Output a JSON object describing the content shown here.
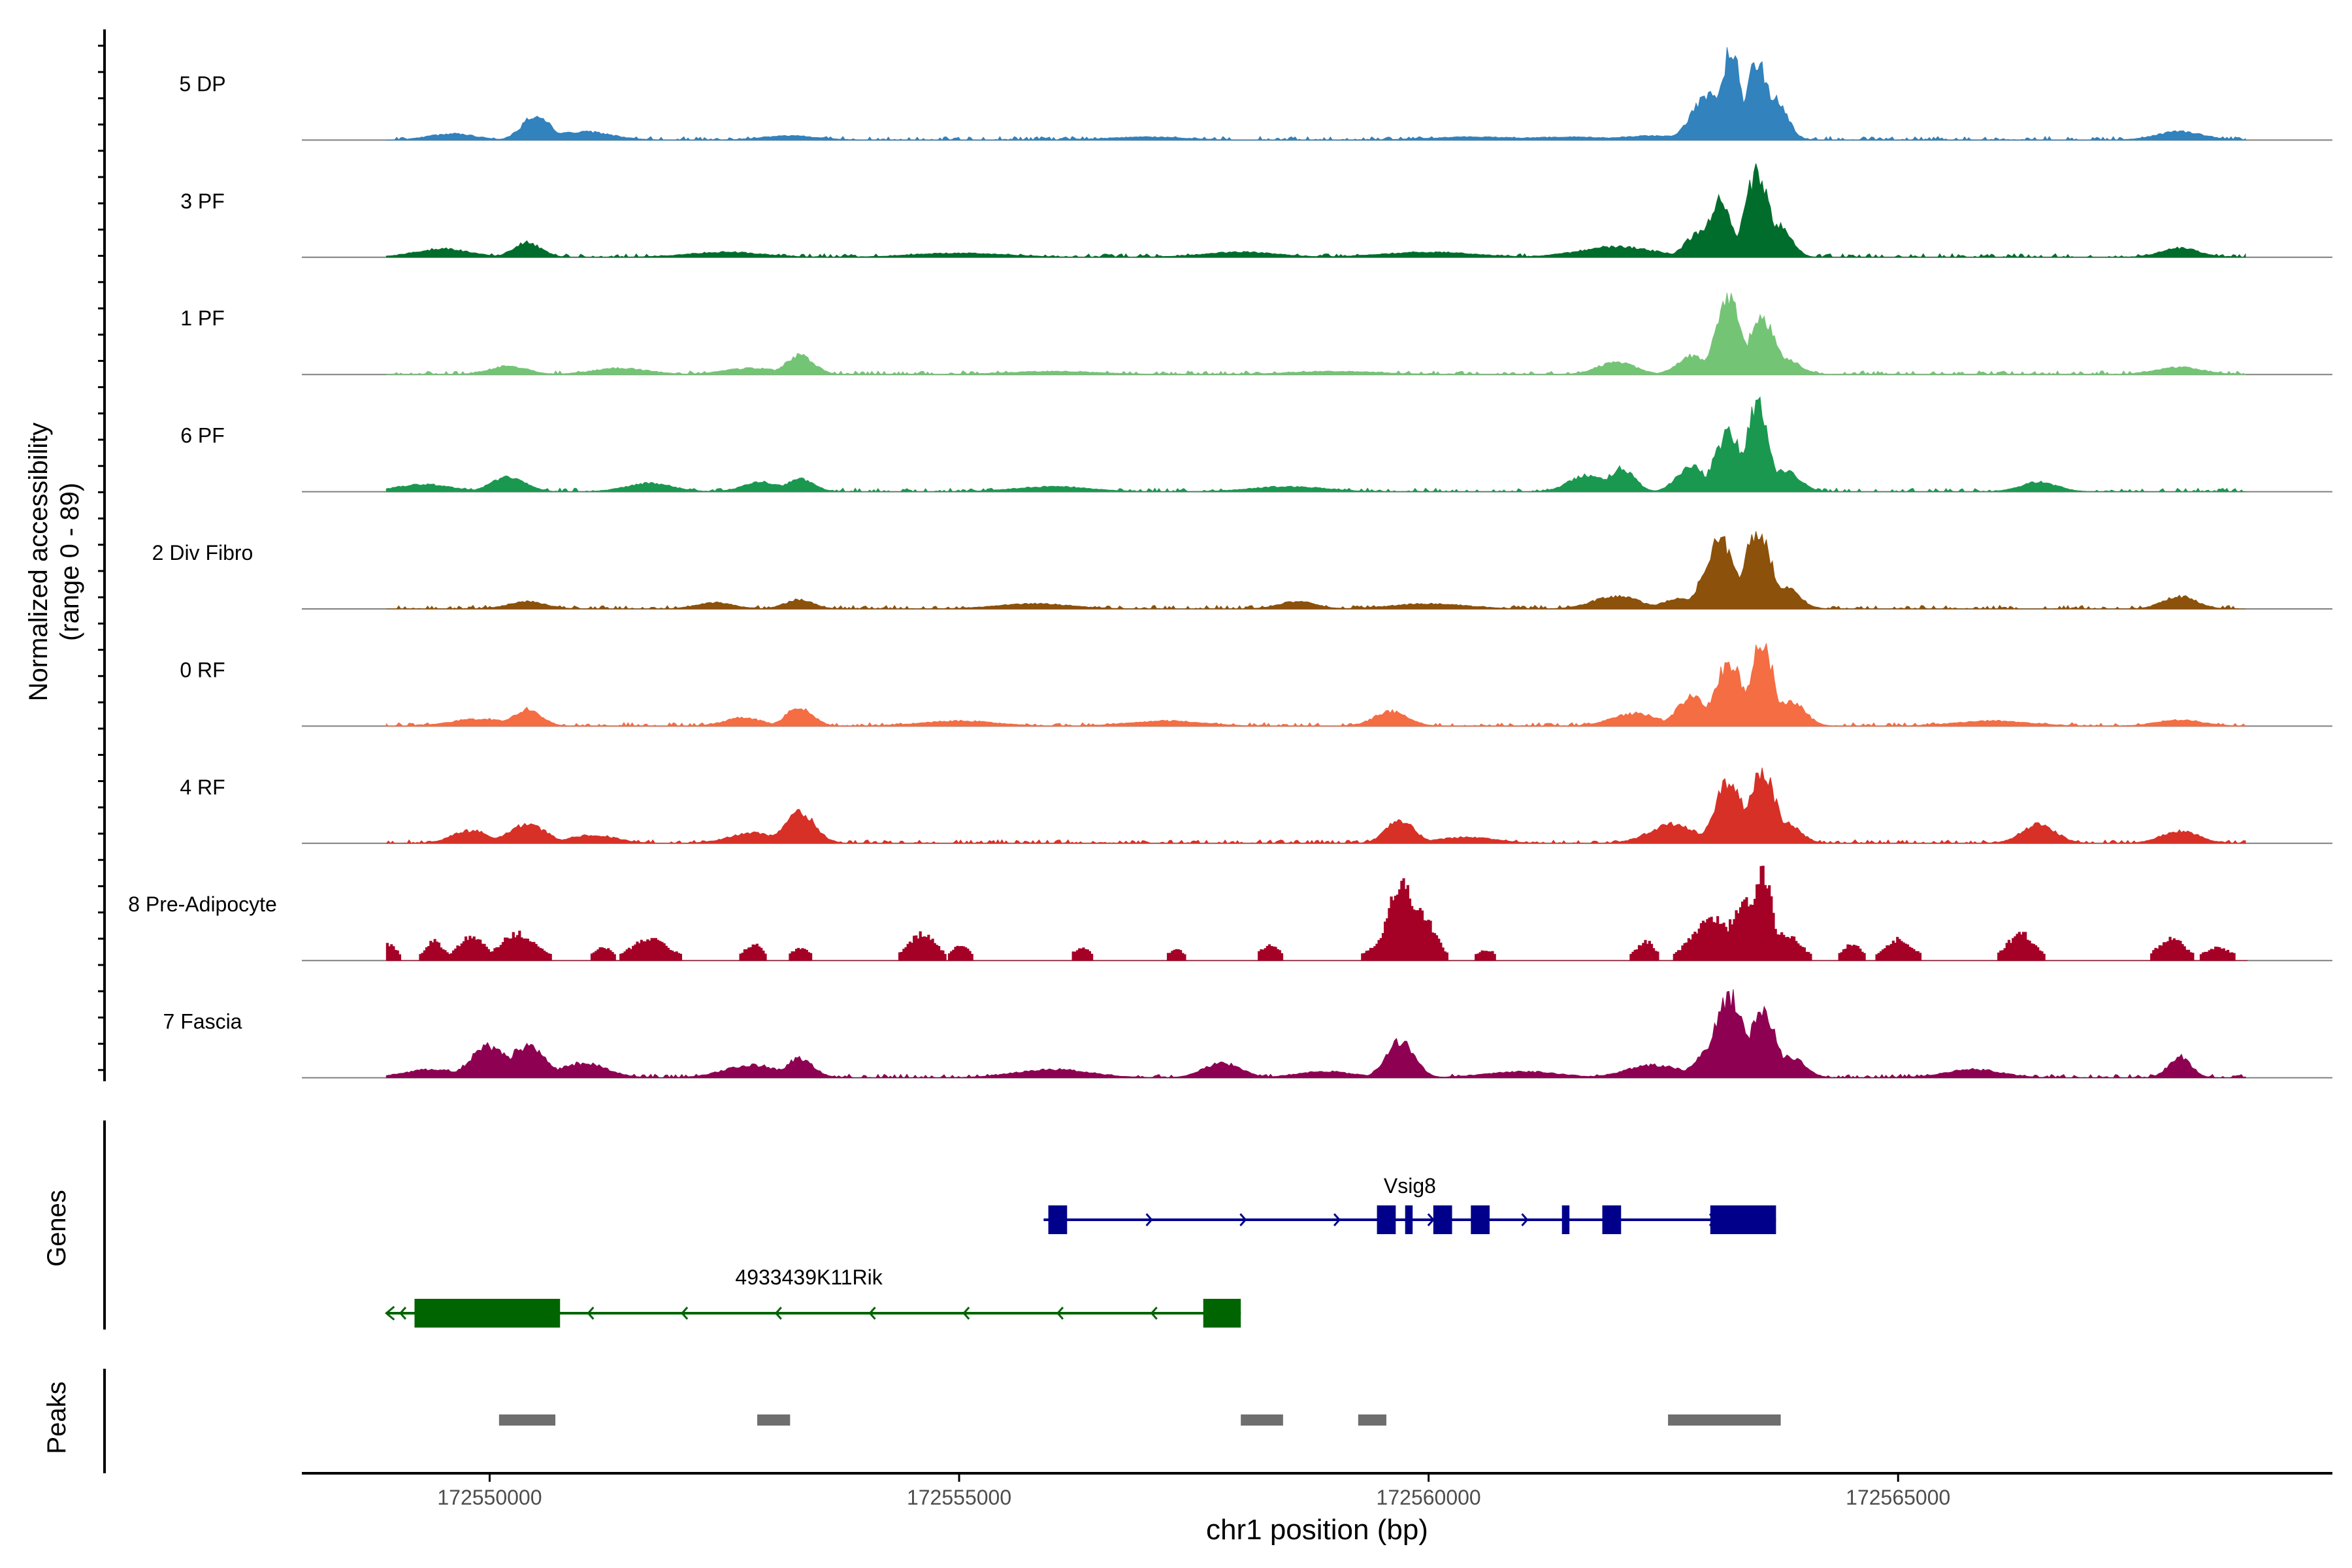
{
  "chart_data": {
    "type": "area",
    "title": "",
    "xlabel": "chr1 position (bp)",
    "ylabel": "Normalized accessibility",
    "ylabel_range": "(range 0 - 89)",
    "xlim": [
      172548000,
      172569500
    ],
    "ylim": [
      0,
      89
    ],
    "x_ticks": [
      172550000,
      172555000,
      172560000,
      172565000
    ],
    "x_tick_labels": [
      "172550000",
      "172555000",
      "172560000",
      "172565000"
    ],
    "track_labels": {
      "genes": "Genes",
      "peaks": "Peaks"
    },
    "series": [
      {
        "name": "5 DP",
        "color": "#3182BD",
        "peaks": [
          [
            172550500,
            24,
            150
          ],
          [
            172551000,
            8,
            300
          ],
          [
            172549600,
            6,
            250
          ],
          [
            172553200,
            4,
            300
          ],
          [
            172557000,
            3,
            400
          ],
          [
            172560500,
            3,
            500
          ],
          [
            172561500,
            3,
            500
          ],
          [
            172562400,
            4,
            400
          ],
          [
            172563000,
            45,
            180
          ],
          [
            172563220,
            85,
            110
          ],
          [
            172563500,
            75,
            120
          ],
          [
            172563700,
            40,
            120
          ],
          [
            172568000,
            8,
            250
          ]
        ]
      },
      {
        "name": "3 PF",
        "color": "#006D2C",
        "peaks": [
          [
            172550400,
            14,
            150
          ],
          [
            172549500,
            8,
            300
          ],
          [
            172552500,
            5,
            400
          ],
          [
            172555000,
            4,
            500
          ],
          [
            172558000,
            5,
            400
          ],
          [
            172560000,
            5,
            500
          ],
          [
            172562000,
            10,
            400
          ],
          [
            172562900,
            25,
            150
          ],
          [
            172563100,
            55,
            120
          ],
          [
            172563500,
            80,
            130
          ],
          [
            172563750,
            30,
            120
          ],
          [
            172568000,
            9,
            200
          ]
        ]
      },
      {
        "name": "1 PF",
        "color": "#74C476",
        "peaks": [
          [
            172550200,
            8,
            200
          ],
          [
            172551400,
            6,
            300
          ],
          [
            172553300,
            18,
            150
          ],
          [
            172552800,
            6,
            300
          ],
          [
            172556000,
            3,
            500
          ],
          [
            172559000,
            3,
            500
          ],
          [
            172562000,
            12,
            200
          ],
          [
            172562800,
            18,
            150
          ],
          [
            172563200,
            70,
            140
          ],
          [
            172563550,
            55,
            140
          ],
          [
            172563800,
            15,
            150
          ],
          [
            172568000,
            7,
            250
          ]
        ]
      },
      {
        "name": "6 PF",
        "color": "#1A9850",
        "peaks": [
          [
            172550200,
            14,
            180
          ],
          [
            172549300,
            7,
            300
          ],
          [
            172551700,
            8,
            250
          ],
          [
            172553300,
            12,
            150
          ],
          [
            172552900,
            9,
            200
          ],
          [
            172556000,
            5,
            400
          ],
          [
            172558500,
            5,
            400
          ],
          [
            172561700,
            16,
            200
          ],
          [
            172562050,
            22,
            140
          ],
          [
            172562800,
            25,
            150
          ],
          [
            172563200,
            55,
            150
          ],
          [
            172563500,
            85,
            120
          ],
          [
            172563800,
            20,
            150
          ],
          [
            172566500,
            9,
            200
          ]
        ]
      },
      {
        "name": "2 Div Fibro",
        "color": "#8C510A",
        "peaks": [
          [
            172550400,
            7,
            200
          ],
          [
            172553300,
            9,
            150
          ],
          [
            172552400,
            6,
            200
          ],
          [
            172555800,
            5,
            400
          ],
          [
            172558600,
            7,
            200
          ],
          [
            172560000,
            5,
            400
          ],
          [
            172562000,
            12,
            250
          ],
          [
            172562700,
            10,
            200
          ],
          [
            172563100,
            65,
            160
          ],
          [
            172563500,
            72,
            150
          ],
          [
            172563800,
            20,
            150
          ],
          [
            172568000,
            12,
            180
          ]
        ]
      },
      {
        "name": "0 RF",
        "color": "#F46D43",
        "peaks": [
          [
            172550400,
            16,
            150
          ],
          [
            172549900,
            7,
            300
          ],
          [
            172553300,
            18,
            140
          ],
          [
            172552700,
            8,
            200
          ],
          [
            172555000,
            5,
            400
          ],
          [
            172557200,
            5,
            400
          ],
          [
            172559600,
            14,
            180
          ],
          [
            172562200,
            12,
            250
          ],
          [
            172562800,
            28,
            150
          ],
          [
            172563200,
            60,
            150
          ],
          [
            172563550,
            80,
            120
          ],
          [
            172563850,
            25,
            150
          ],
          [
            172566000,
            5,
            400
          ],
          [
            172568000,
            6,
            250
          ]
        ]
      },
      {
        "name": "4 RF",
        "color": "#D73027",
        "peaks": [
          [
            172550400,
            18,
            200
          ],
          [
            172549800,
            12,
            200
          ],
          [
            172551100,
            8,
            250
          ],
          [
            172553300,
            30,
            160
          ],
          [
            172552800,
            10,
            250
          ],
          [
            172559700,
            22,
            150
          ],
          [
            172560400,
            6,
            300
          ],
          [
            172562600,
            18,
            250
          ],
          [
            172563200,
            60,
            150
          ],
          [
            172563550,
            70,
            140
          ],
          [
            172563800,
            20,
            150
          ],
          [
            172566500,
            18,
            180
          ],
          [
            172568000,
            12,
            200
          ]
        ]
      },
      {
        "name": "8 Pre-Adipocyte",
        "color": "#A50026",
        "stepped": true,
        "peaks": [
          [
            172548900,
            15,
            100
          ],
          [
            172549400,
            18,
            100
          ],
          [
            172549800,
            22,
            150
          ],
          [
            172550300,
            25,
            200
          ],
          [
            172551200,
            12,
            100
          ],
          [
            172551700,
            20,
            200
          ],
          [
            172552800,
            15,
            100
          ],
          [
            172553300,
            12,
            100
          ],
          [
            172554600,
            25,
            150
          ],
          [
            172555000,
            15,
            100
          ],
          [
            172556300,
            12,
            100
          ],
          [
            172557300,
            10,
            100
          ],
          [
            172558300,
            15,
            100
          ],
          [
            172559700,
            70,
            150
          ],
          [
            172559900,
            45,
            150
          ],
          [
            172559400,
            12,
            100
          ],
          [
            172560600,
            10,
            100
          ],
          [
            172562300,
            18,
            100
          ],
          [
            172563000,
            40,
            200
          ],
          [
            172563350,
            55,
            160
          ],
          [
            172563550,
            85,
            100
          ],
          [
            172563800,
            25,
            150
          ],
          [
            172564500,
            15,
            100
          ],
          [
            172565000,
            20,
            150
          ],
          [
            172566300,
            25,
            150
          ],
          [
            172567900,
            20,
            150
          ],
          [
            172568400,
            12,
            150
          ]
        ]
      },
      {
        "name": "7 Fascia",
        "color": "#8E0152",
        "peaks": [
          [
            172550000,
            30,
            200
          ],
          [
            172550400,
            30,
            200
          ],
          [
            172551000,
            14,
            250
          ],
          [
            172549400,
            8,
            300
          ],
          [
            172553300,
            18,
            150
          ],
          [
            172552800,
            12,
            300
          ],
          [
            172556000,
            8,
            400
          ],
          [
            172557800,
            14,
            200
          ],
          [
            172558900,
            6,
            300
          ],
          [
            172559700,
            35,
            150
          ],
          [
            172561000,
            6,
            400
          ],
          [
            172562400,
            12,
            300
          ],
          [
            172563000,
            30,
            150
          ],
          [
            172563200,
            78,
            150
          ],
          [
            172563550,
            62,
            150
          ],
          [
            172563850,
            20,
            150
          ],
          [
            172565800,
            8,
            300
          ],
          [
            172568000,
            20,
            120
          ]
        ]
      }
    ],
    "genes": [
      {
        "name": "Vsig8",
        "strand": "+",
        "color": "#00008B",
        "start": 172555900,
        "end": 172563700,
        "exons": [
          [
            172555950,
            172556150
          ],
          [
            172559450,
            172559650
          ],
          [
            172559750,
            172559830
          ],
          [
            172560050,
            172560250
          ],
          [
            172560450,
            172560650
          ],
          [
            172561420,
            172561500
          ],
          [
            172561850,
            172562050
          ],
          [
            172563000,
            172563700
          ]
        ]
      },
      {
        "name": "4933439K11Rik",
        "strand": "-",
        "color": "#006400",
        "start": 172548900,
        "end": 172558000,
        "exons": [
          [
            172549200,
            172550750
          ],
          [
            172557600,
            172558000
          ]
        ]
      }
    ],
    "peak_regions": [
      [
        172550100,
        172550700
      ],
      [
        172552850,
        172553200
      ],
      [
        172558000,
        172558450
      ],
      [
        172559250,
        172559550
      ],
      [
        172562550,
        172563750
      ]
    ]
  }
}
